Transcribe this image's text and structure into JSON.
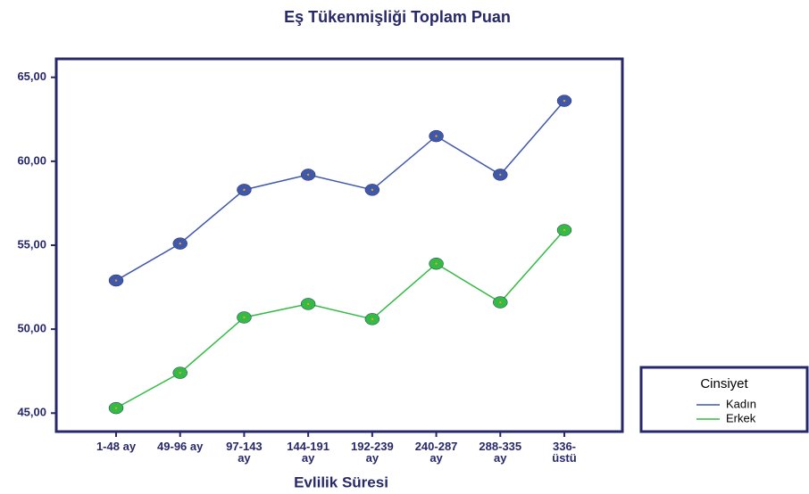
{
  "chart_data": {
    "type": "line",
    "title": "Eş Tükenmişliği Toplam Puan",
    "x_label": "Evlilik Süresi",
    "categories": [
      "1-48 ay",
      "49-96 ay",
      "97-143\nay",
      "144-191\nay",
      "192-239\nay",
      "240-287\nay",
      "288-335\nay",
      "336-\nüstü"
    ],
    "series": [
      {
        "name": "Kadın",
        "color": "#3f58a8",
        "values": [
          52.9,
          55.1,
          58.3,
          59.2,
          58.3,
          61.5,
          59.2,
          63.6
        ]
      },
      {
        "name": "Erkek",
        "color": "#33bb44",
        "values": [
          45.3,
          47.4,
          50.7,
          51.5,
          50.6,
          53.9,
          51.6,
          55.9
        ]
      }
    ],
    "ylim": [
      43.9,
      66.1
    ],
    "yticks": [
      {
        "value": 45,
        "label": "45,00"
      },
      {
        "value": 50,
        "label": "50,00"
      },
      {
        "value": 55,
        "label": "55,00"
      },
      {
        "value": 60,
        "label": "60,00"
      },
      {
        "value": 65,
        "label": "65,00"
      }
    ],
    "legend_title": "Cinsiyet",
    "legend_position": "right"
  }
}
